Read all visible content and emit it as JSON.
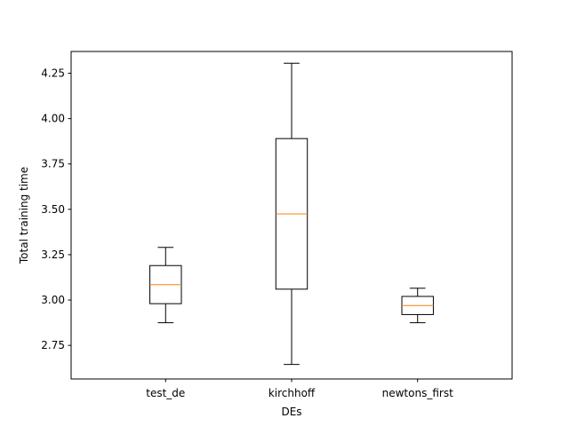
{
  "chart_data": {
    "type": "box",
    "title": "",
    "xlabel": "DEs",
    "ylabel": "Total training time",
    "ylim": [
      2.565,
      4.37
    ],
    "yticks": [
      2.75,
      3.0,
      3.25,
      3.5,
      3.75,
      4.0,
      4.25
    ],
    "ytick_labels": [
      "2.75",
      "3.00",
      "3.25",
      "3.50",
      "3.75",
      "4.00",
      "4.25"
    ],
    "grid": false,
    "colors": {
      "box": "#000000",
      "median": "#ff7f0e"
    },
    "categories": [
      "test_de",
      "kirchhoff",
      "newtons_first"
    ],
    "boxes": [
      {
        "label": "test_de",
        "whisker_low": 2.875,
        "q1": 2.98,
        "median": 3.085,
        "q3": 3.19,
        "whisker_high": 3.29
      },
      {
        "label": "kirchhoff",
        "whisker_low": 2.645,
        "q1": 3.06,
        "median": 3.475,
        "q3": 3.89,
        "whisker_high": 4.305
      },
      {
        "label": "newtons_first",
        "whisker_low": 2.875,
        "q1": 2.92,
        "median": 2.97,
        "q3": 3.02,
        "whisker_high": 3.065
      }
    ]
  }
}
